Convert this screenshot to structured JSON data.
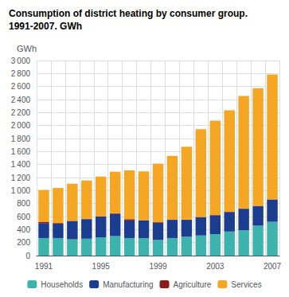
{
  "chart_data": {
    "type": "bar",
    "title": "Consumption of district heating by consumer group.",
    "subtitle": "1991-2007. GWh",
    "ylabel": "GWh",
    "stacked": true,
    "categories": [
      "1991",
      null,
      null,
      null,
      "1995",
      null,
      null,
      null,
      "1999",
      null,
      null,
      null,
      "2003",
      null,
      null,
      null,
      "2007"
    ],
    "series": [
      {
        "name": "Households",
        "color": "#3db3ad",
        "values": [
          270,
          270,
          250,
          260,
          280,
          300,
          270,
          270,
          240,
          270,
          290,
          310,
          330,
          370,
          390,
          460,
          520
        ]
      },
      {
        "name": "Manufacturing",
        "color": "#1b3d8f",
        "values": [
          230,
          220,
          280,
          300,
          320,
          340,
          270,
          270,
          270,
          280,
          260,
          280,
          290,
          300,
          330,
          300,
          340
        ]
      },
      {
        "name": "Agriculture",
        "color": "#8b1a1a",
        "values": [
          20,
          10,
          5,
          5,
          5,
          10,
          20,
          5,
          5,
          5,
          5,
          5,
          5,
          5,
          5,
          5,
          5
        ]
      },
      {
        "name": "Services",
        "color": "#f5a623",
        "values": [
          490,
          540,
          570,
          590,
          610,
          640,
          750,
          750,
          900,
          980,
          1120,
          1350,
          1450,
          1560,
          1730,
          1810,
          1920
        ]
      }
    ],
    "ylim": [
      0,
      3000
    ],
    "yticks": [
      0,
      200,
      400,
      600,
      800,
      {
        "value": 1000,
        "label": "1 000"
      },
      {
        "value": 1200,
        "label": "1 200"
      },
      {
        "value": 1400,
        "label": "1 400"
      },
      {
        "value": 1600,
        "label": "1 600"
      },
      {
        "value": 1800,
        "label": "1 800"
      },
      {
        "value": 2000,
        "label": "2 000"
      },
      {
        "value": 2200,
        "label": "2 200"
      },
      {
        "value": 2400,
        "label": "2 400"
      },
      {
        "value": 2600,
        "label": "2 600"
      },
      {
        "value": 2800,
        "label": "2 800"
      },
      {
        "value": 3000,
        "label": "3 000"
      }
    ],
    "grid": true,
    "legend": "bottom"
  }
}
